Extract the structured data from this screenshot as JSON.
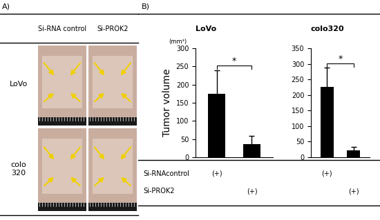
{
  "panel_a": {
    "label": "A)",
    "columns": [
      "Si-RNA control",
      "Si-PROK2"
    ],
    "rows": [
      "LoVo",
      "colo 320"
    ]
  },
  "panel_b_label": "B)",
  "chart_data": [
    {
      "type": "bar",
      "title": "LoVo",
      "y_label": "Tumor volume",
      "unit": "(mm³)",
      "categories": [
        null,
        null
      ],
      "values": [
        175,
        37
      ],
      "errors": [
        65,
        22
      ],
      "color": "#000000",
      "ylim": [
        0,
        300
      ],
      "yticks": [
        0,
        50,
        100,
        150,
        200,
        250,
        300
      ],
      "annotation": "*"
    },
    {
      "type": "bar",
      "title": "colo320",
      "categories": [
        null,
        null
      ],
      "values": [
        227,
        22
      ],
      "errors": [
        60,
        12
      ],
      "color": "#000000",
      "ylim": [
        0,
        350
      ],
      "yticks": [
        0,
        50,
        100,
        150,
        200,
        250,
        300,
        350
      ],
      "annotation": "*"
    }
  ],
  "treatment_table": {
    "rows": [
      {
        "label": "Si-RNAcontrol",
        "marks": [
          "(+)",
          null,
          "(+)",
          null
        ]
      },
      {
        "label": "Si-PROK2",
        "marks": [
          null,
          "(+)",
          null,
          "(+)"
        ]
      }
    ]
  }
}
